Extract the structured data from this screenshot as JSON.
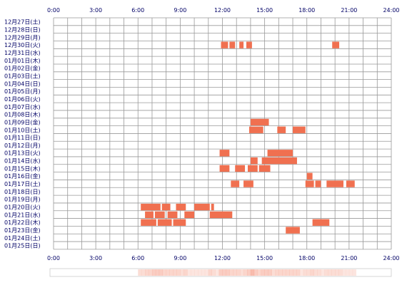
{
  "chart_data": {
    "type": "heatmap",
    "x_range": [
      0,
      24
    ],
    "x_ticks": [
      "0:00",
      "3:00",
      "6:00",
      "9:00",
      "12:00",
      "15:00",
      "18:00",
      "21:00",
      "24:00"
    ],
    "rows": [
      "12月27日(土)",
      "12月28日(日)",
      "12月29日(月)",
      "12月30日(火)",
      "12月31日(水)",
      "01月01日(木)",
      "01月02日(金)",
      "01月03日(土)",
      "01月04日(日)",
      "01月05日(月)",
      "01月06日(火)",
      "01月07日(水)",
      "01月08日(木)",
      "01月09日(金)",
      "01月10日(土)",
      "01月11日(日)",
      "01月12日(月)",
      "01月13日(火)",
      "01月14日(水)",
      "01月15日(木)",
      "01月16日(金)",
      "01月17日(土)",
      "01月18日(日)",
      "01月19日(月)",
      "01月20日(火)",
      "01月21日(水)",
      "01月22日(木)",
      "01月23日(金)",
      "01月24日(土)",
      "01月25日(日)"
    ],
    "activity_color": "#f07050",
    "grid_color": "#999999",
    "activity": [
      {
        "row": 3,
        "start": 11.9,
        "end": 12.4
      },
      {
        "row": 3,
        "start": 12.5,
        "end": 12.9
      },
      {
        "row": 3,
        "start": 13.2,
        "end": 13.5
      },
      {
        "row": 3,
        "start": 13.7,
        "end": 14.1
      },
      {
        "row": 3,
        "start": 19.8,
        "end": 20.3
      },
      {
        "row": 13,
        "start": 14.0,
        "end": 15.3
      },
      {
        "row": 14,
        "start": 13.9,
        "end": 14.9
      },
      {
        "row": 14,
        "start": 15.9,
        "end": 16.5
      },
      {
        "row": 14,
        "start": 17.0,
        "end": 17.9
      },
      {
        "row": 17,
        "start": 11.8,
        "end": 12.5
      },
      {
        "row": 17,
        "start": 15.2,
        "end": 17.0
      },
      {
        "row": 18,
        "start": 14.0,
        "end": 14.5
      },
      {
        "row": 18,
        "start": 14.8,
        "end": 17.3
      },
      {
        "row": 19,
        "start": 11.8,
        "end": 12.5
      },
      {
        "row": 19,
        "start": 12.9,
        "end": 13.6
      },
      {
        "row": 19,
        "start": 13.8,
        "end": 14.5
      },
      {
        "row": 19,
        "start": 14.6,
        "end": 15.4
      },
      {
        "row": 20,
        "start": 18.0,
        "end": 18.4
      },
      {
        "row": 21,
        "start": 12.6,
        "end": 13.2
      },
      {
        "row": 21,
        "start": 13.5,
        "end": 14.2
      },
      {
        "row": 21,
        "start": 17.9,
        "end": 18.5
      },
      {
        "row": 21,
        "start": 18.6,
        "end": 19.0
      },
      {
        "row": 21,
        "start": 19.4,
        "end": 20.6
      },
      {
        "row": 21,
        "start": 20.8,
        "end": 21.4
      },
      {
        "row": 24,
        "start": 6.2,
        "end": 7.6
      },
      {
        "row": 24,
        "start": 7.7,
        "end": 8.3
      },
      {
        "row": 24,
        "start": 8.7,
        "end": 9.4
      },
      {
        "row": 24,
        "start": 10.0,
        "end": 11.1
      },
      {
        "row": 24,
        "start": 11.2,
        "end": 11.4
      },
      {
        "row": 25,
        "start": 6.5,
        "end": 7.1
      },
      {
        "row": 25,
        "start": 7.2,
        "end": 7.9
      },
      {
        "row": 25,
        "start": 8.1,
        "end": 8.8
      },
      {
        "row": 25,
        "start": 9.3,
        "end": 10.0
      },
      {
        "row": 25,
        "start": 11.1,
        "end": 12.7
      },
      {
        "row": 26,
        "start": 6.2,
        "end": 7.3
      },
      {
        "row": 26,
        "start": 7.4,
        "end": 8.4
      },
      {
        "row": 26,
        "start": 8.5,
        "end": 9.4
      },
      {
        "row": 26,
        "start": 18.4,
        "end": 19.6
      },
      {
        "row": 27,
        "start": 16.5,
        "end": 17.5
      }
    ]
  }
}
